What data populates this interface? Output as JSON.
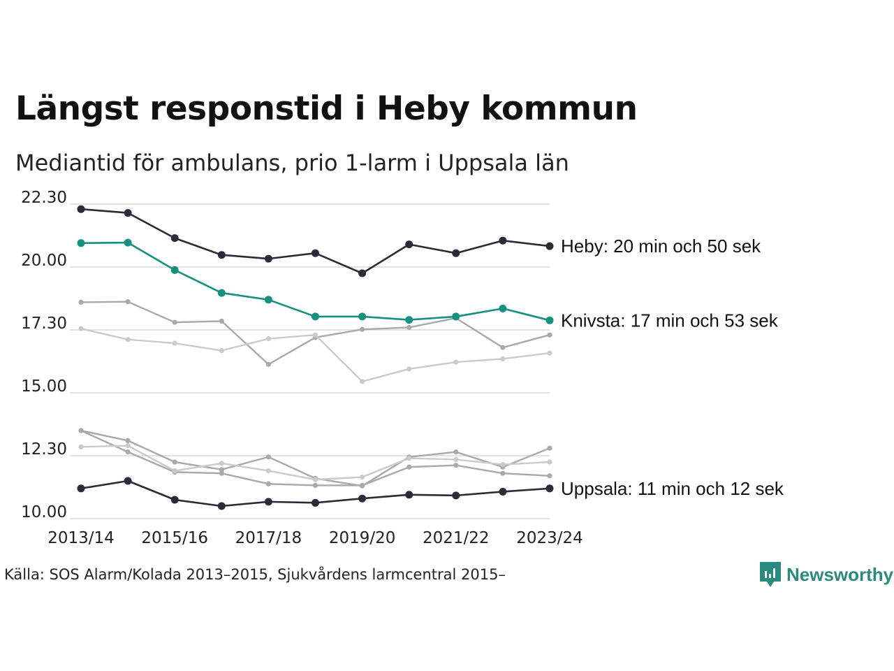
{
  "title": "Längst responstid i Heby kommun",
  "subtitle": "Mediantid för ambulans, prio 1-larm i Uppsala län",
  "source": "Källa: SOS Alarm/Kolada 2013–2015, Sjukvårdens larmcentral 2015–",
  "brand": {
    "name": "Newsworthy",
    "icon": "newsworthy-logo-icon",
    "color": "#2a8a7d"
  },
  "chart_data": {
    "type": "line",
    "x": [
      "2013/14",
      "2014/15",
      "2015/16",
      "2016/17",
      "2017/18",
      "2018/19",
      "2019/20",
      "2020/21",
      "2021/22",
      "2022/23",
      "2023/24"
    ],
    "x_tick_labels": [
      "2013/14",
      "2015/16",
      "2017/18",
      "2019/20",
      "2021/22",
      "2023/24"
    ],
    "y_ticks": [
      10,
      12.5,
      15,
      17.5,
      20,
      22.5
    ],
    "y_tick_labels": [
      "10.00",
      "12.30",
      "15.00",
      "17.30",
      "20.00",
      "22.30"
    ],
    "ylim": [
      10,
      22.5
    ],
    "grid": true,
    "series": [
      {
        "role": "highlight",
        "color": "#2b2a38",
        "name": "Heby",
        "label": "Heby: 20 min och 50 sek",
        "values": [
          22.3,
          22.15,
          21.15,
          20.48,
          20.33,
          20.55,
          19.75,
          20.9,
          20.55,
          21.05,
          20.83
        ]
      },
      {
        "role": "highlight",
        "color": "#16907f",
        "name": "Knivsta",
        "label": "Knivsta: 17 min och 53 sek",
        "values": [
          20.95,
          20.97,
          19.88,
          18.97,
          18.7,
          18.03,
          18.03,
          17.9,
          18.03,
          18.35,
          17.88
        ]
      },
      {
        "role": "highlight",
        "color": "#2b2a38",
        "name": "Uppsala",
        "label": "Uppsala: 11 min och 12 sek",
        "values": [
          11.2,
          11.5,
          10.75,
          10.5,
          10.67,
          10.63,
          10.8,
          10.95,
          10.92,
          11.07,
          11.2
        ]
      },
      {
        "role": "context",
        "color": "#a9a9a9",
        "values": [
          18.6,
          18.62,
          17.8,
          17.85,
          16.13,
          17.2,
          17.52,
          17.6,
          17.97,
          16.8,
          17.3
        ]
      },
      {
        "role": "context",
        "color": "#cacaca",
        "values": [
          17.55,
          17.12,
          16.97,
          16.68,
          17.15,
          17.3,
          15.45,
          15.95,
          16.22,
          16.35,
          16.58
        ]
      },
      {
        "role": "context",
        "color": "#a9a9a9",
        "values": [
          13.5,
          13.1,
          12.25,
          11.95,
          12.45,
          11.6,
          11.3,
          12.45,
          12.65,
          12.05,
          12.8
        ]
      },
      {
        "role": "context",
        "color": "#a9a9a9",
        "values": [
          13.5,
          12.65,
          11.85,
          11.8,
          11.38,
          11.32,
          11.32,
          12.05,
          12.12,
          11.8,
          11.7
        ]
      },
      {
        "role": "context",
        "color": "#cacaca",
        "values": [
          12.85,
          12.9,
          11.9,
          12.2,
          11.9,
          11.55,
          11.65,
          12.4,
          12.35,
          12.15,
          12.25
        ]
      }
    ]
  }
}
